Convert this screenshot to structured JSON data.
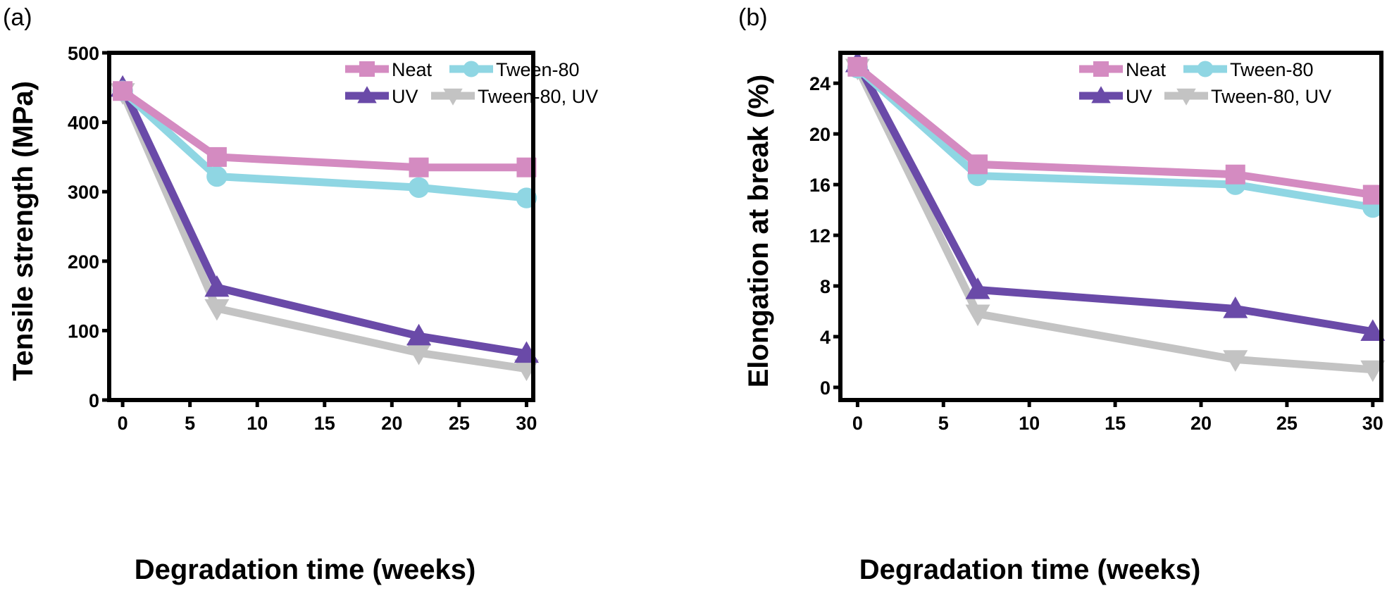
{
  "chart_data": [
    {
      "type": "line",
      "panel_label": "(a)",
      "title": "",
      "xlabel": "Degradation time (weeks)",
      "ylabel": "Tensile strength (MPa)",
      "x": [
        0,
        7,
        22,
        30
      ],
      "xlim": [
        -1,
        30.5
      ],
      "ylim": [
        0,
        500
      ],
      "xticks": [
        0,
        5,
        10,
        15,
        20,
        25,
        30
      ],
      "yticks": [
        0,
        100,
        200,
        300,
        400,
        500
      ],
      "grid": false,
      "legend_position": "top-right",
      "series": [
        {
          "name": "Neat",
          "marker": "square",
          "color": "#d48bc1",
          "values": [
            445,
            350,
            335,
            335
          ]
        },
        {
          "name": "Tween-80",
          "marker": "circle",
          "color": "#8fd6e3",
          "values": [
            445,
            322,
            306,
            291
          ]
        },
        {
          "name": "UV",
          "marker": "triangle-up",
          "color": "#6a4aa8",
          "values": [
            450,
            162,
            92,
            67
          ]
        },
        {
          "name": "Tween-80, UV",
          "marker": "triangle-down",
          "color": "#c3c3c3",
          "values": [
            443,
            132,
            68,
            45
          ]
        }
      ]
    },
    {
      "type": "line",
      "panel_label": "(b)",
      "title": "",
      "xlabel": "Degradation time (weeks)",
      "ylabel": "Elongation at break (%)",
      "x": [
        0,
        7,
        22,
        30
      ],
      "xlim": [
        -1,
        30.5
      ],
      "ylim": [
        -1,
        26.4
      ],
      "xticks": [
        0,
        5,
        10,
        15,
        20,
        25,
        30
      ],
      "yticks": [
        0,
        4,
        8,
        12,
        16,
        20,
        24
      ],
      "grid": false,
      "legend_position": "top-right",
      "series": [
        {
          "name": "Neat",
          "marker": "square",
          "color": "#d48bc1",
          "values": [
            25.3,
            17.6,
            16.8,
            15.2
          ]
        },
        {
          "name": "Tween-80",
          "marker": "circle",
          "color": "#8fd6e3",
          "values": [
            25.2,
            16.7,
            16.0,
            14.2
          ]
        },
        {
          "name": "UV",
          "marker": "triangle-up",
          "color": "#6a4aa8",
          "values": [
            25.6,
            7.7,
            6.2,
            4.4
          ]
        },
        {
          "name": "Tween-80, UV",
          "marker": "triangle-down",
          "color": "#c3c3c3",
          "values": [
            25.2,
            5.8,
            2.2,
            1.4
          ]
        }
      ]
    }
  ]
}
